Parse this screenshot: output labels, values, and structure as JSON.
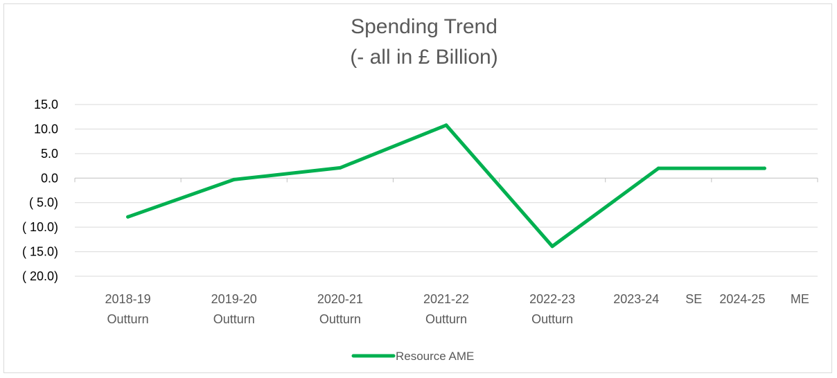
{
  "chart_data": {
    "type": "line",
    "title": "Spending Trend",
    "subtitle": "(- all in £ Billion)",
    "xlabel": "",
    "ylabel": "",
    "categories": [
      [
        "2018-19",
        "Outturn"
      ],
      [
        "2019-20",
        "Outturn"
      ],
      [
        "2020-21",
        "Outturn"
      ],
      [
        "2021-22",
        "Outturn"
      ],
      [
        "2022-23",
        "Outturn"
      ],
      [
        "2023-24",
        "SE"
      ],
      [
        "2024-25",
        "ME"
      ]
    ],
    "ylim": [
      -20,
      15
    ],
    "yticks": [
      15,
      10,
      5,
      0,
      -5,
      -10,
      -15,
      -20
    ],
    "ytick_labels": [
      "15.0",
      "10.0",
      "5.0",
      "0.0",
      "( 5.0)",
      "( 10.0)",
      "( 15.0)",
      "( 20.0)"
    ],
    "grid": true,
    "legend_position": "bottom",
    "series": [
      {
        "name": "Resource AME",
        "color": "#00b050",
        "values": [
          -7.9,
          -0.3,
          2.1,
          10.8,
          -13.9,
          2.0,
          2.0
        ]
      }
    ]
  }
}
